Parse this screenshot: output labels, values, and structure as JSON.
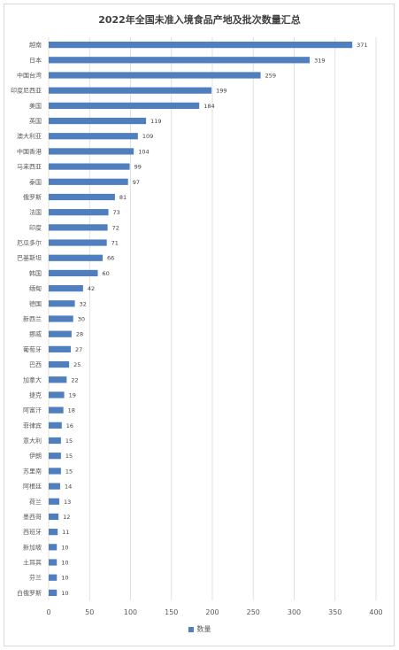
{
  "chart_data": {
    "type": "bar",
    "orientation": "horizontal",
    "title": "2022年全国未准入境食品产地及批次数量汇总",
    "categories": [
      "越南",
      "日本",
      "中国台湾",
      "印度尼西亚",
      "美国",
      "英国",
      "澳大利亚",
      "中国香港",
      "马来西亚",
      "泰国",
      "俄罗斯",
      "法国",
      "印度",
      "厄瓜多尔",
      "巴基斯坦",
      "韩国",
      "缅甸",
      "德国",
      "新西兰",
      "挪威",
      "葡萄牙",
      "巴西",
      "加拿大",
      "捷克",
      "阿富汗",
      "菲律宾",
      "意大利",
      "伊朗",
      "苏里南",
      "阿根廷",
      "荷兰",
      "墨西哥",
      "西班牙",
      "新加坡",
      "土耳其",
      "芬兰",
      "白俄罗斯"
    ],
    "series": [
      {
        "name": "数量",
        "values": [
          371,
          319,
          259,
          199,
          184,
          119,
          109,
          104,
          99,
          97,
          81,
          73,
          72,
          71,
          66,
          60,
          42,
          32,
          30,
          28,
          27,
          25,
          22,
          19,
          18,
          16,
          15,
          15,
          15,
          14,
          13,
          12,
          11,
          10,
          10,
          10,
          10
        ]
      }
    ],
    "xlim": [
      0,
      400
    ],
    "xticks": [
      0,
      50,
      100,
      150,
      200,
      250,
      300,
      350,
      400
    ],
    "grid": true,
    "legend_position": "bottom",
    "bar_color": "#4f7fbe"
  }
}
